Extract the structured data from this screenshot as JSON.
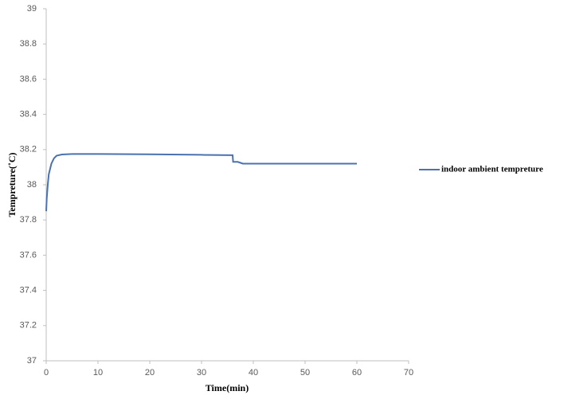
{
  "chart_data": {
    "type": "line",
    "x_label": "Time(min)",
    "y_label": "Tempreture(˚C)",
    "x": [
      0,
      0.1,
      0.3,
      0.5,
      1,
      1.5,
      2,
      3,
      5,
      10,
      20,
      30,
      36,
      36.1,
      37,
      37.5,
      38,
      40,
      50,
      60
    ],
    "series": [
      {
        "name": "indoor ambient tempreture",
        "color": "#4a72b0",
        "values": [
          37.85,
          37.92,
          38.0,
          38.06,
          38.12,
          38.15,
          38.165,
          38.172,
          38.175,
          38.175,
          38.173,
          38.17,
          38.168,
          38.13,
          38.13,
          38.125,
          38.12,
          38.12,
          38.12,
          38.12
        ]
      }
    ],
    "xlim": [
      0,
      70
    ],
    "xticks": [
      0,
      10,
      20,
      30,
      40,
      50,
      60,
      70
    ],
    "ylim": [
      37,
      39
    ],
    "yticks": [
      37,
      37.2,
      37.4,
      37.6,
      37.8,
      38,
      38.2,
      38.4,
      38.6,
      38.8,
      39
    ],
    "grid": false,
    "legend": "right"
  }
}
